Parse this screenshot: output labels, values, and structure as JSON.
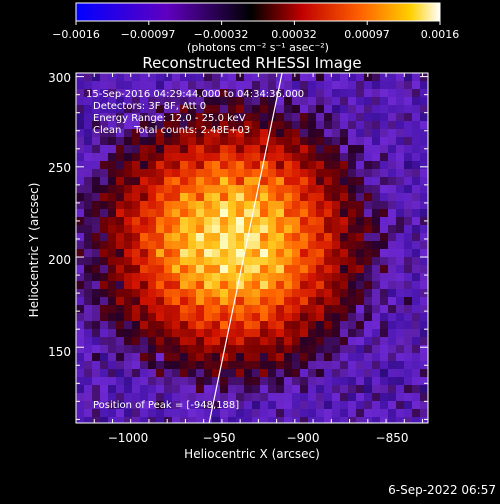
{
  "colorbar": {
    "tick_labels": [
      "−0.0016",
      "−0.00097",
      "−0.00032",
      "0.00032",
      "0.00097",
      "0.0016"
    ],
    "units_label": "(photons cm⁻² s⁻¹ asec⁻²)",
    "colors": {
      "negative_end": "#0000ff",
      "mid_negative": "#6000c0",
      "zero": "#000000",
      "low_positive": "#c00000",
      "mid_positive": "#ff6000",
      "high_positive": "#ffd000",
      "max": "#ffffff"
    }
  },
  "plot": {
    "title": "Reconstructed RHESSI Image",
    "annotations": {
      "time_range": "15-Sep-2016 04:29:44.000 to 04:34:36.000",
      "detectors": "Detectors: 3F 8F, Att 0",
      "energy": "Energy Range: 12.0 - 25.0 keV",
      "method": "Clean    Total counts: 2.48E+03",
      "peak": "Position of Peak = [-948,188]"
    },
    "x_axis_label": "Heliocentric X (arcsec)",
    "y_axis_label": "Heliocentric Y (arcsec)",
    "x_tick_labels": [
      "−1000",
      "−950",
      "−900",
      "−850"
    ],
    "y_tick_labels": [
      "150",
      "200",
      "250",
      "300"
    ]
  },
  "footer": {
    "timestamp": "6-Sep-2022 06:57"
  },
  "chart_data": {
    "type": "heatmap",
    "title": "Reconstructed RHESSI Image",
    "xlabel": "Heliocentric X (arcsec)",
    "ylabel": "Heliocentric Y (arcsec)",
    "xlim": [
      -1025,
      -832
    ],
    "ylim": [
      108,
      302
    ],
    "x_ticks": [
      -1000,
      -950,
      -900,
      -850
    ],
    "y_ticks": [
      150,
      200,
      250,
      300
    ],
    "colorbar_range": [
      -0.0016,
      0.0016
    ],
    "peak_position": [
      -948,
      188
    ],
    "source_center": [
      -940,
      205
    ],
    "limb_line": [
      [
        -952,
        108
      ],
      [
        -912,
        302
      ]
    ]
  }
}
